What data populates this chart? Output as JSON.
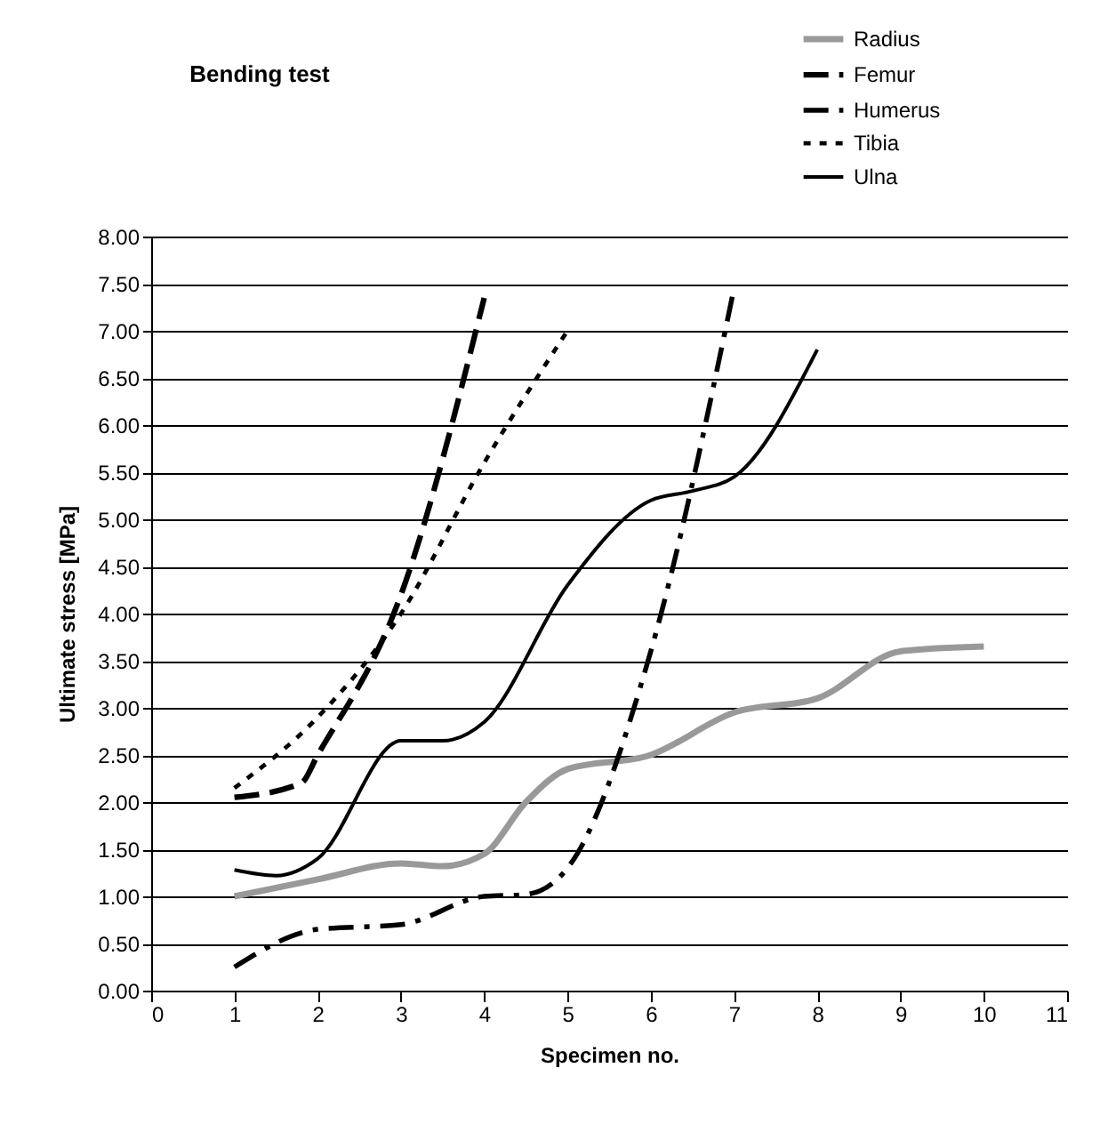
{
  "chart_data": {
    "type": "line",
    "title": "Bending test",
    "xlabel": "Specimen no.",
    "ylabel": "Ultimate stress [MPa]",
    "xlim": [
      0,
      11
    ],
    "xticks": [
      0,
      1,
      2,
      3,
      4,
      5,
      6,
      7,
      8,
      9,
      10,
      11
    ],
    "ylim": [
      0,
      8
    ],
    "yticks": [
      {
        "value": 0,
        "label": "0.00"
      },
      {
        "value": 0.5,
        "label": "0.50"
      },
      {
        "value": 1,
        "label": "1.00"
      },
      {
        "value": 1.5,
        "label": "1.50"
      },
      {
        "value": 2,
        "label": "2.00"
      },
      {
        "value": 2.5,
        "label": "2.50"
      },
      {
        "value": 3,
        "label": "3.00"
      },
      {
        "value": 3.5,
        "label": "3.50"
      },
      {
        "value": 4,
        "label": "4.00"
      },
      {
        "value": 4.5,
        "label": "4.50"
      },
      {
        "value": 5,
        "label": "5.00"
      },
      {
        "value": 5.5,
        "label": "5.50"
      },
      {
        "value": 6,
        "label": "6.00"
      },
      {
        "value": 6.5,
        "label": "6.50"
      },
      {
        "value": 7,
        "label": "7.00"
      },
      {
        "value": 7.5,
        "label": "7.50"
      },
      {
        "value": 8,
        "label": "8.00"
      }
    ],
    "grid": "y",
    "legend": "top right",
    "marker": "none",
    "series": [
      {
        "name": "Radius",
        "color": "#999999",
        "line_style": "solid",
        "x": [
          1,
          2,
          3,
          3.5,
          4,
          4.5,
          5,
          6,
          7,
          8,
          9,
          10
        ],
        "values": [
          1.0,
          1.18,
          1.35,
          1.32,
          1.45,
          2.0,
          2.35,
          2.5,
          2.95,
          3.1,
          3.6,
          3.65
        ]
      },
      {
        "name": "Femur",
        "color": "#000000",
        "line_style": "dashed",
        "x": [
          1,
          1.8,
          2,
          3,
          4
        ],
        "values": [
          2.05,
          2.2,
          2.5,
          4.2,
          7.35
        ]
      },
      {
        "name": "Humerus",
        "color": "#000000",
        "line_style": "dashdot",
        "x": [
          1,
          2,
          3,
          4,
          4.5,
          5,
          6,
          7
        ],
        "values": [
          0.25,
          0.65,
          0.7,
          1.0,
          1.02,
          1.3,
          3.6,
          7.45
        ]
      },
      {
        "name": "Tibia",
        "color": "#000000",
        "line_style": "dotted",
        "x": [
          1,
          2,
          3,
          4,
          5
        ],
        "values": [
          2.15,
          2.9,
          4.0,
          5.6,
          7.0
        ]
      },
      {
        "name": "Ulna",
        "color": "#000000",
        "line_style": "solid",
        "x": [
          1,
          1.5,
          2,
          3,
          3.5,
          4,
          5,
          6,
          6.5,
          7,
          8
        ],
        "values": [
          1.28,
          1.22,
          1.4,
          2.65,
          2.65,
          2.85,
          4.3,
          5.2,
          5.3,
          5.45,
          6.8
        ]
      }
    ]
  }
}
